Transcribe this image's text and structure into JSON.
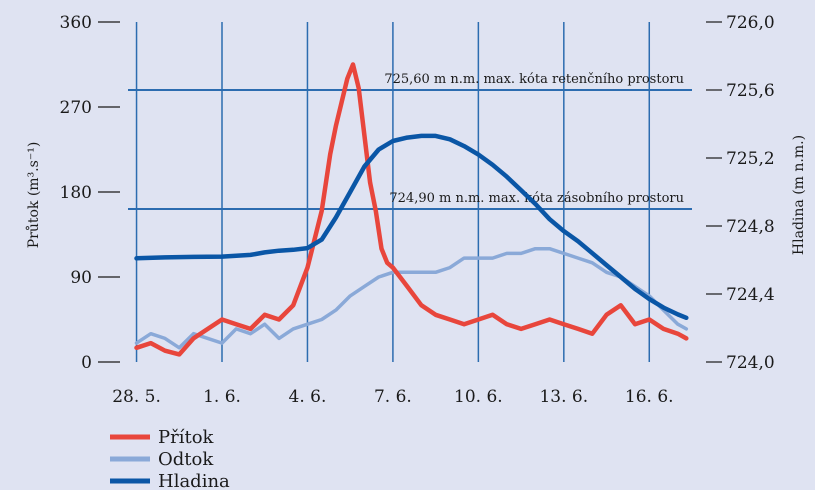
{
  "chart_data": {
    "type": "line",
    "title": "",
    "xlabel": "",
    "ylabel_left": "Průtok (m³.s⁻¹)",
    "ylabel_right": "Hladina (m n.m.)",
    "x_ticks": [
      "28. 5.",
      "1. 6.",
      "4. 6.",
      "7. 6.",
      "10. 6.",
      "13. 6.",
      "16. 6."
    ],
    "xlim": [
      -0.3,
      19.5
    ],
    "y_left_ticks": [
      "0",
      "90",
      "180",
      "270",
      "360"
    ],
    "y_left_range": [
      0,
      360
    ],
    "y_right_ticks": [
      "724,0",
      "724,4",
      "724,8",
      "725,2",
      "725,6",
      "726,0"
    ],
    "y_right_range": [
      724.0,
      726.0
    ],
    "grid": true,
    "legend_position": "bottom-left",
    "colors": {
      "background": "#dfe3f2",
      "grid": "#2c6cb0",
      "pritok": "#e8463c",
      "odtok": "#8aa9d8",
      "hladina": "#0a56a6"
    },
    "reference_lines": [
      {
        "value": 725.6,
        "axis": "right",
        "label": "725,60 m n.m. max. kóta retenčního prostoru"
      },
      {
        "value": 724.9,
        "axis": "right",
        "label": "724,90 m n.m. max. kóta zásobního prostoru"
      }
    ],
    "series": [
      {
        "name": "Přítok",
        "axis": "left",
        "color": "#e8463c",
        "x": [
          0,
          0.5,
          1,
          1.5,
          2,
          2.5,
          3,
          3.5,
          4,
          4.5,
          5,
          5.5,
          6,
          6.5,
          6.8,
          7,
          7.2,
          7.4,
          7.6,
          7.8,
          8,
          8.2,
          8.4,
          8.6,
          8.8,
          9,
          9.5,
          10,
          10.5,
          11,
          11.5,
          12,
          12.5,
          13,
          13.5,
          14,
          14.5,
          15,
          15.5,
          16,
          16.5,
          17,
          17.5,
          18,
          18.5,
          19,
          19.3
        ],
        "values": [
          15,
          20,
          12,
          8,
          25,
          35,
          45,
          40,
          35,
          50,
          45,
          60,
          100,
          160,
          220,
          250,
          275,
          300,
          315,
          290,
          240,
          190,
          160,
          120,
          105,
          100,
          80,
          60,
          50,
          45,
          40,
          45,
          50,
          40,
          35,
          40,
          45,
          40,
          35,
          30,
          50,
          60,
          40,
          45,
          35,
          30,
          25
        ]
      },
      {
        "name": "Odtok",
        "axis": "left",
        "color": "#8aa9d8",
        "x": [
          0,
          0.5,
          1,
          1.5,
          2,
          2.5,
          3,
          3.5,
          4,
          4.5,
          5,
          5.5,
          6,
          6.5,
          7,
          7.5,
          8,
          8.5,
          9,
          9.5,
          10,
          10.5,
          11,
          11.5,
          12,
          12.5,
          13,
          13.5,
          14,
          14.5,
          15,
          15.5,
          16,
          16.5,
          17,
          17.5,
          18,
          18.5,
          19,
          19.3
        ],
        "values": [
          20,
          30,
          25,
          15,
          30,
          25,
          20,
          35,
          30,
          40,
          25,
          35,
          40,
          45,
          55,
          70,
          80,
          90,
          95,
          95,
          95,
          95,
          100,
          110,
          110,
          110,
          115,
          115,
          120,
          120,
          115,
          110,
          105,
          95,
          90,
          80,
          70,
          55,
          40,
          35
        ]
      },
      {
        "name": "Hladina",
        "axis": "right",
        "color": "#0a56a6",
        "x": [
          0,
          1,
          2,
          3,
          4,
          4.5,
          5,
          5.5,
          6,
          6.5,
          7,
          7.5,
          8,
          8.5,
          9,
          9.5,
          10,
          10.5,
          11,
          11.5,
          12,
          12.5,
          13,
          13.5,
          14,
          14.5,
          15,
          15.5,
          16,
          16.5,
          17,
          17.5,
          18,
          18.5,
          19,
          19.3
        ],
        "values": [
          724.61,
          724.615,
          724.618,
          724.62,
          724.63,
          724.645,
          724.655,
          724.66,
          724.67,
          724.72,
          724.85,
          725.0,
          725.15,
          725.25,
          725.3,
          725.32,
          725.33,
          725.33,
          725.31,
          725.27,
          725.22,
          725.16,
          725.09,
          725.01,
          724.93,
          724.84,
          724.77,
          724.71,
          724.64,
          724.57,
          724.5,
          724.43,
          724.37,
          724.32,
          724.28,
          724.26
        ]
      }
    ]
  }
}
